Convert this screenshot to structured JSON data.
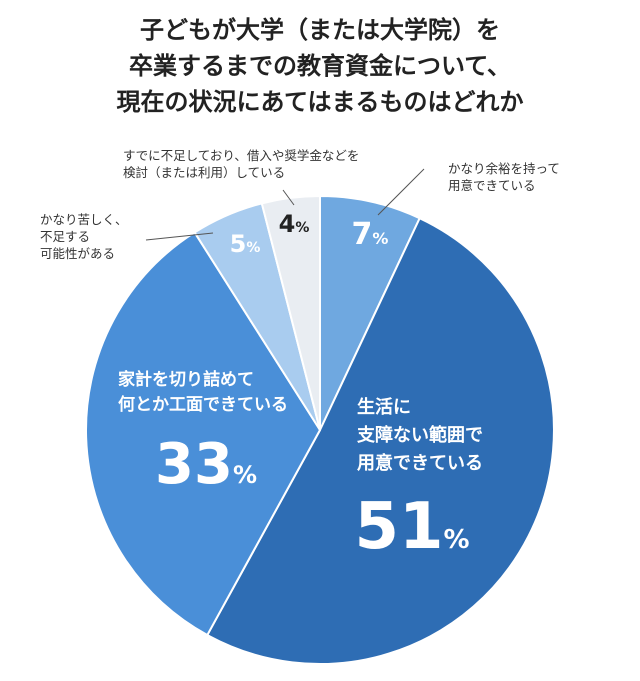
{
  "title_lines": [
    "子どもが大学（または大学院）を",
    "卒業するまでの教育資金について、",
    "現在の状況にあてはまるものはどれか"
  ],
  "chart_data": {
    "type": "pie",
    "unit": "%",
    "slices": [
      {
        "label_lines": [
          "かなり余裕を持って",
          "用意できている"
        ],
        "value": 7,
        "color": "#6fa8e0",
        "label_color": "#ffffff",
        "value_color": "#ffffff",
        "outside_label": true
      },
      {
        "label_lines": [
          "生活に",
          "支障ない範囲で",
          "用意できている"
        ],
        "value": 51,
        "color": "#2e6db4",
        "label_color": "#ffffff",
        "value_color": "#ffffff",
        "outside_label": false
      },
      {
        "label_lines": [
          "家計を切り詰めて",
          "何とか工面できている"
        ],
        "value": 33,
        "color": "#4a8fd8",
        "label_color": "#ffffff",
        "value_color": "#ffffff",
        "outside_label": false
      },
      {
        "label_lines": [
          "かなり苦しく、",
          "不足する",
          "可能性がある"
        ],
        "value": 5,
        "color": "#a9ccef",
        "label_color": "#333333",
        "value_color": "#ffffff",
        "outside_label": true
      },
      {
        "label_lines": [
          "すでに不足しており、借入や奨学金などを",
          "検討（または利用）している"
        ],
        "value": 4,
        "color": "#e9edf2",
        "label_color": "#333333",
        "value_color": "#222222",
        "outside_label": true
      }
    ]
  }
}
